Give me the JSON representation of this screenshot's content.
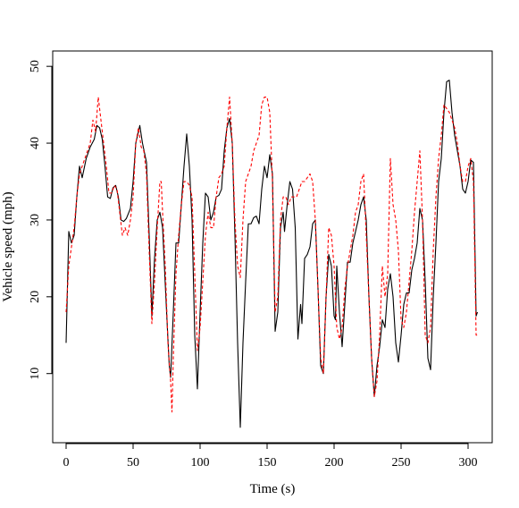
{
  "chart_data": {
    "type": "line",
    "title": "",
    "xlabel": "Time (s)",
    "ylabel": "Vehicle speed (mph)",
    "xlim": [
      -10,
      318
    ],
    "ylim": [
      1,
      52
    ],
    "x_ticks": [
      0,
      50,
      100,
      150,
      200,
      250,
      300
    ],
    "y_ticks": [
      10,
      20,
      30,
      40,
      50
    ],
    "grid": false,
    "legend": "none",
    "series": [
      {
        "style": "solid",
        "color": "#000000",
        "points": [
          [
            0,
            14
          ],
          [
            2,
            28.5
          ],
          [
            4,
            27
          ],
          [
            6,
            28
          ],
          [
            8,
            33
          ],
          [
            10,
            37
          ],
          [
            12,
            35.5
          ],
          [
            15,
            38
          ],
          [
            18,
            39.5
          ],
          [
            21,
            40.5
          ],
          [
            23,
            42.3
          ],
          [
            25,
            42
          ],
          [
            27,
            40.5
          ],
          [
            29,
            37
          ],
          [
            31,
            33
          ],
          [
            33,
            32.8
          ],
          [
            35,
            34.2
          ],
          [
            37,
            34.5
          ],
          [
            39,
            33
          ],
          [
            41,
            30
          ],
          [
            43,
            29.8
          ],
          [
            45,
            30.2
          ],
          [
            48,
            31.5
          ],
          [
            50,
            35
          ],
          [
            52,
            40
          ],
          [
            55,
            42.3
          ],
          [
            57,
            40
          ],
          [
            60,
            37.5
          ],
          [
            62,
            28
          ],
          [
            64,
            17.5
          ],
          [
            66,
            25
          ],
          [
            68,
            30
          ],
          [
            70,
            31
          ],
          [
            72,
            29
          ],
          [
            75,
            18
          ],
          [
            77,
            11
          ],
          [
            78,
            9.5
          ],
          [
            80,
            18
          ],
          [
            82,
            27
          ],
          [
            84,
            27
          ],
          [
            86,
            32
          ],
          [
            88,
            37
          ],
          [
            90,
            41.2
          ],
          [
            92,
            37
          ],
          [
            94,
            30
          ],
          [
            96,
            15
          ],
          [
            98,
            8
          ],
          [
            100,
            18
          ],
          [
            102,
            27
          ],
          [
            104,
            33.5
          ],
          [
            106,
            33
          ],
          [
            108,
            30
          ],
          [
            110,
            31
          ],
          [
            112,
            33
          ],
          [
            114,
            33.2
          ],
          [
            116,
            34
          ],
          [
            118,
            39
          ],
          [
            120,
            42
          ],
          [
            122,
            43.2
          ],
          [
            124,
            40
          ],
          [
            126,
            28
          ],
          [
            128,
            14
          ],
          [
            130,
            3
          ],
          [
            132,
            14
          ],
          [
            134,
            22
          ],
          [
            136,
            29.5
          ],
          [
            138,
            29.5
          ],
          [
            140,
            30.3
          ],
          [
            142,
            30.5
          ],
          [
            144,
            29.5
          ],
          [
            146,
            34
          ],
          [
            148,
            37
          ],
          [
            150,
            35.5
          ],
          [
            152,
            38.5
          ],
          [
            154,
            36
          ],
          [
            156,
            15.5
          ],
          [
            158,
            18
          ],
          [
            160,
            29
          ],
          [
            162,
            31
          ],
          [
            163,
            28.5
          ],
          [
            165,
            32
          ],
          [
            167,
            35
          ],
          [
            169,
            34
          ],
          [
            171,
            29
          ],
          [
            173,
            14.5
          ],
          [
            175,
            19
          ],
          [
            176,
            16.5
          ],
          [
            178,
            25
          ],
          [
            180,
            25.5
          ],
          [
            182,
            26.5
          ],
          [
            184,
            29.5
          ],
          [
            186,
            30
          ],
          [
            188,
            21
          ],
          [
            190,
            11
          ],
          [
            192,
            10
          ],
          [
            194,
            20
          ],
          [
            196,
            25.5
          ],
          [
            198,
            24
          ],
          [
            200,
            17.5
          ],
          [
            201,
            17
          ],
          [
            202,
            24
          ],
          [
            204,
            18
          ],
          [
            206,
            13.5
          ],
          [
            208,
            19
          ],
          [
            210,
            24.5
          ],
          [
            212,
            24.5
          ],
          [
            214,
            27
          ],
          [
            216,
            28.5
          ],
          [
            218,
            30
          ],
          [
            220,
            32
          ],
          [
            222,
            33
          ],
          [
            224,
            30
          ],
          [
            226,
            20
          ],
          [
            228,
            12
          ],
          [
            230,
            7
          ],
          [
            232,
            11
          ],
          [
            234,
            13.5
          ],
          [
            236,
            17
          ],
          [
            238,
            16
          ],
          [
            240,
            21
          ],
          [
            242,
            23
          ],
          [
            244,
            20
          ],
          [
            246,
            14
          ],
          [
            248,
            11.5
          ],
          [
            250,
            15
          ],
          [
            252,
            19
          ],
          [
            254,
            20.5
          ],
          [
            256,
            20.5
          ],
          [
            258,
            23.5
          ],
          [
            260,
            25
          ],
          [
            262,
            27
          ],
          [
            264,
            31.5
          ],
          [
            266,
            30
          ],
          [
            268,
            22
          ],
          [
            270,
            12
          ],
          [
            272,
            10.5
          ],
          [
            274,
            20
          ],
          [
            276,
            27
          ],
          [
            278,
            35
          ],
          [
            280,
            38
          ],
          [
            282,
            44
          ],
          [
            284,
            48
          ],
          [
            286,
            48.2
          ],
          [
            288,
            44
          ],
          [
            290,
            41
          ],
          [
            292,
            39
          ],
          [
            294,
            37
          ],
          [
            296,
            34
          ],
          [
            298,
            33.5
          ],
          [
            300,
            35
          ],
          [
            302,
            37.8
          ],
          [
            304,
            37.5
          ],
          [
            306,
            17.5
          ],
          [
            307,
            18
          ]
        ]
      },
      {
        "style": "dashed",
        "color": "#ff0000",
        "points": [
          [
            0,
            18
          ],
          [
            2,
            24
          ],
          [
            4,
            26.5
          ],
          [
            6,
            29
          ],
          [
            8,
            33
          ],
          [
            10,
            36
          ],
          [
            12,
            37
          ],
          [
            15,
            38.5
          ],
          [
            18,
            40
          ],
          [
            20,
            43
          ],
          [
            22,
            41.5
          ],
          [
            24,
            46
          ],
          [
            26,
            43
          ],
          [
            28,
            40
          ],
          [
            30,
            37
          ],
          [
            32,
            33.5
          ],
          [
            34,
            33.5
          ],
          [
            36,
            34.5
          ],
          [
            38,
            34
          ],
          [
            40,
            31
          ],
          [
            42,
            28
          ],
          [
            44,
            29
          ],
          [
            46,
            28
          ],
          [
            48,
            30
          ],
          [
            50,
            33
          ],
          [
            52,
            40
          ],
          [
            54,
            42
          ],
          [
            56,
            39.5
          ],
          [
            58,
            39
          ],
          [
            60,
            36
          ],
          [
            62,
            26
          ],
          [
            64,
            16.5
          ],
          [
            66,
            22
          ],
          [
            68,
            29
          ],
          [
            70,
            35
          ],
          [
            71,
            35
          ],
          [
            72,
            31
          ],
          [
            74,
            24
          ],
          [
            76,
            14
          ],
          [
            78,
            9
          ],
          [
            79,
            5
          ],
          [
            80,
            12
          ],
          [
            82,
            23
          ],
          [
            84,
            28
          ],
          [
            86,
            32
          ],
          [
            88,
            35
          ],
          [
            90,
            35
          ],
          [
            92,
            34.5
          ],
          [
            94,
            33
          ],
          [
            96,
            23
          ],
          [
            98,
            13
          ],
          [
            100,
            16
          ],
          [
            102,
            22
          ],
          [
            104,
            28
          ],
          [
            106,
            31
          ],
          [
            108,
            29
          ],
          [
            110,
            29
          ],
          [
            112,
            33
          ],
          [
            114,
            35.5
          ],
          [
            116,
            36
          ],
          [
            118,
            37
          ],
          [
            120,
            42
          ],
          [
            122,
            46
          ],
          [
            124,
            40
          ],
          [
            126,
            30
          ],
          [
            128,
            24
          ],
          [
            130,
            22.5
          ],
          [
            132,
            30
          ],
          [
            134,
            35
          ],
          [
            136,
            36
          ],
          [
            138,
            37
          ],
          [
            140,
            39
          ],
          [
            142,
            40
          ],
          [
            144,
            41
          ],
          [
            146,
            45
          ],
          [
            148,
            46
          ],
          [
            150,
            46
          ],
          [
            152,
            44
          ],
          [
            154,
            35
          ],
          [
            156,
            18
          ],
          [
            158,
            20
          ],
          [
            160,
            30
          ],
          [
            162,
            33
          ],
          [
            164,
            33
          ],
          [
            166,
            32
          ],
          [
            168,
            33
          ],
          [
            170,
            33
          ],
          [
            172,
            33
          ],
          [
            174,
            34
          ],
          [
            176,
            35
          ],
          [
            178,
            35
          ],
          [
            180,
            35.5
          ],
          [
            182,
            36
          ],
          [
            184,
            35
          ],
          [
            186,
            30
          ],
          [
            188,
            21
          ],
          [
            190,
            12
          ],
          [
            192,
            10
          ],
          [
            194,
            20
          ],
          [
            196,
            29
          ],
          [
            198,
            28
          ],
          [
            200,
            24
          ],
          [
            202,
            16
          ],
          [
            204,
            14.5
          ],
          [
            206,
            16
          ],
          [
            208,
            21
          ],
          [
            210,
            24
          ],
          [
            212,
            26
          ],
          [
            214,
            28
          ],
          [
            216,
            31
          ],
          [
            218,
            32
          ],
          [
            220,
            35
          ],
          [
            222,
            36
          ],
          [
            224,
            28
          ],
          [
            226,
            20
          ],
          [
            228,
            12
          ],
          [
            230,
            7
          ],
          [
            232,
            9
          ],
          [
            234,
            15
          ],
          [
            236,
            24
          ],
          [
            238,
            20
          ],
          [
            240,
            23
          ],
          [
            242,
            38
          ],
          [
            244,
            32
          ],
          [
            246,
            30
          ],
          [
            248,
            26
          ],
          [
            250,
            17
          ],
          [
            252,
            16
          ],
          [
            254,
            18
          ],
          [
            256,
            22
          ],
          [
            258,
            26
          ],
          [
            260,
            31
          ],
          [
            262,
            35
          ],
          [
            264,
            39
          ],
          [
            266,
            30
          ],
          [
            268,
            15
          ],
          [
            270,
            14
          ],
          [
            272,
            16
          ],
          [
            274,
            26
          ],
          [
            276,
            33
          ],
          [
            278,
            38
          ],
          [
            280,
            41
          ],
          [
            282,
            45
          ],
          [
            284,
            44.5
          ],
          [
            286,
            44
          ],
          [
            288,
            43
          ],
          [
            290,
            42
          ],
          [
            292,
            40
          ],
          [
            294,
            37
          ],
          [
            296,
            35
          ],
          [
            298,
            35
          ],
          [
            300,
            37
          ],
          [
            302,
            38
          ],
          [
            304,
            35
          ],
          [
            306,
            15
          ],
          [
            307,
            15
          ]
        ]
      }
    ]
  }
}
